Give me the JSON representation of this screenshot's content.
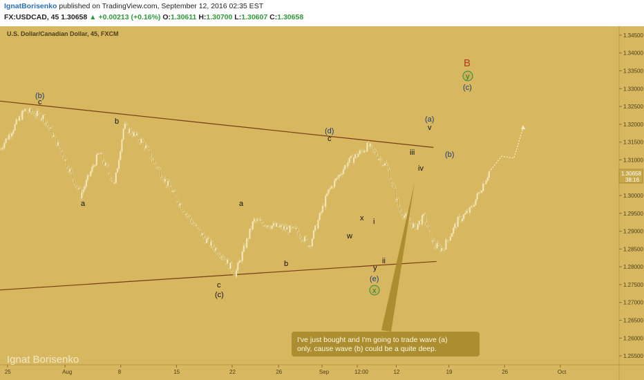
{
  "header": {
    "author": "IgnatBorisenko",
    "published": "published on TradingView.com, September 12, 2016 02:35 EST",
    "symbol": "FX:USDCAD, 45",
    "last": "1.30658",
    "change_arrow": "▲",
    "change": "+0.00213 (+0.16%)",
    "o_label": "O:",
    "o": "1.30611",
    "h_label": "H:",
    "h": "1.30700",
    "l_label": "L:",
    "l": "1.30607",
    "c_label": "C:",
    "c": "1.30658"
  },
  "colors": {
    "background": "#d7b760",
    "trendline": "#7a3a12",
    "candles": "#f0e2b0",
    "wave_blue": "#1e3c78",
    "wave_B": "#b23a1a",
    "note_bg": "#a8892c"
  },
  "chart": {
    "instrument_title": "U.S. Dollar/Canadian Dollar, 45, FXCM",
    "watermark": "Ignat Borisenko",
    "price_tag": "1.30658",
    "countdown": "38:16",
    "note": [
      "I've just bought and I'm going to trade wave (a)",
      "only, cause wave (b) could be a quite deep."
    ],
    "waves": {
      "b_paren": "(b)",
      "c": "c",
      "b": "b",
      "a": "a",
      "a2": "a",
      "b2": "b",
      "c2": "c",
      "c_paren": "(c)",
      "d_paren": "(d)",
      "c3": "c",
      "x": "x",
      "w": "w",
      "y": "y",
      "e_paren": "(e)",
      "x_circle": "x",
      "i": "i",
      "ii": "ii",
      "iii": "iii",
      "iv": "iv",
      "v": "v",
      "a_paren": "(a)",
      "b_paren2": "(b)",
      "B": "B",
      "y_circle": "y",
      "c_paren2": "(c)"
    }
  },
  "chart_data": {
    "type": "line",
    "title": "U.S. Dollar/Canadian Dollar, 45, FXCM",
    "x_ticks": [
      "25",
      "Aug",
      "8",
      "15",
      "22",
      "26",
      "Sep",
      "12:00",
      "12",
      "19",
      "26",
      "Oct"
    ],
    "y_ticks": [
      "1.34500",
      "1.34000",
      "1.33500",
      "1.33000",
      "1.32500",
      "1.32000",
      "1.31500",
      "1.31000",
      "1.30500",
      "1.30000",
      "1.29500",
      "1.29000",
      "1.28500",
      "1.28000",
      "1.27500",
      "1.27000",
      "1.26500",
      "1.26000",
      "1.25500"
    ],
    "ylim": [
      1.2525,
      1.3475
    ],
    "approx_path": [
      [
        0,
        1.313
      ],
      [
        0.04,
        1.324
      ],
      [
        0.07,
        1.322
      ],
      [
        0.1,
        1.312
      ],
      [
        0.13,
        1.3
      ],
      [
        0.16,
        1.312
      ],
      [
        0.185,
        1.303
      ],
      [
        0.2,
        1.3195
      ],
      [
        0.23,
        1.315
      ],
      [
        0.26,
        1.306
      ],
      [
        0.3,
        1.295
      ],
      [
        0.33,
        1.288
      ],
      [
        0.36,
        1.283
      ],
      [
        0.38,
        1.278
      ],
      [
        0.41,
        1.293
      ],
      [
        0.44,
        1.2915
      ],
      [
        0.48,
        1.29
      ],
      [
        0.5,
        1.286
      ],
      [
        0.53,
        1.301
      ],
      [
        0.56,
        1.309
      ],
      [
        0.595,
        1.314
      ],
      [
        0.625,
        1.308
      ],
      [
        0.645,
        1.296
      ],
      [
        0.67,
        1.291
      ],
      [
        0.685,
        1.294
      ],
      [
        0.7,
        1.286
      ],
      [
        0.715,
        1.285
      ],
      [
        0.74,
        1.293
      ],
      [
        0.76,
        1.296
      ],
      [
        0.79,
        1.3066
      ]
    ],
    "projection": [
      [
        0.79,
        1.3066
      ],
      [
        0.81,
        1.311
      ],
      [
        0.83,
        1.3105
      ],
      [
        0.845,
        1.319
      ]
    ],
    "trendlines": [
      {
        "from": [
          0.0,
          1.3265
        ],
        "to": [
          0.7,
          1.3135
        ]
      },
      {
        "from": [
          0.0,
          1.2735
        ],
        "to": [
          0.705,
          1.2815
        ]
      }
    ]
  }
}
